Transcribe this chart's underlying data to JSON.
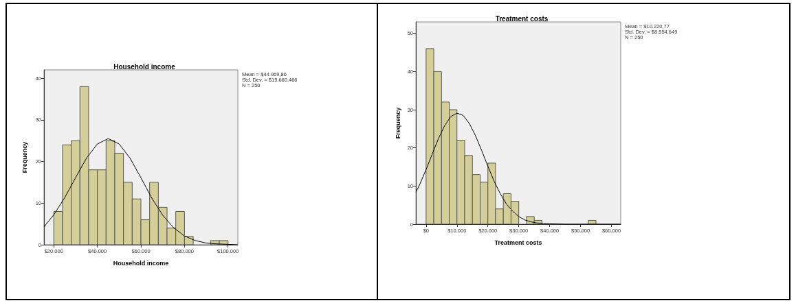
{
  "chart_data": [
    {
      "type": "histogram",
      "title": "Household income",
      "xlabel": "Household income",
      "ylabel": "Frequency",
      "bins": [
        20000,
        24000,
        28000,
        32000,
        36000,
        40000,
        44000,
        48000,
        52000,
        56000,
        60000,
        64000,
        68000,
        72000,
        76000,
        80000,
        84000,
        88000,
        92000,
        96000,
        100000
      ],
      "series": [
        {
          "color": "#d4cf99",
          "values": [
            8,
            24,
            25,
            38,
            18,
            18,
            25,
            22,
            15,
            11,
            6,
            15,
            9,
            4,
            8,
            2,
            0,
            0,
            1,
            1
          ]
        },
        {
          "type": "line",
          "color": "#000000",
          "x": [
            15500,
            20000,
            25000,
            30000,
            35000,
            40000,
            45000,
            50000,
            55000,
            60000,
            65000,
            70000,
            75000,
            80000,
            85000,
            90000,
            95000,
            100000,
            104500
          ],
          "values": [
            4.3,
            7.2,
            11.3,
            16.1,
            20.8,
            24.2,
            25.5,
            24.2,
            20.8,
            16.1,
            11.2,
            7.1,
            4.1,
            2.1,
            1.0,
            0.4,
            0.2,
            0.1,
            0.0
          ]
        }
      ],
      "xlim": [
        15500,
        104500
      ],
      "ylim": [
        0,
        42
      ],
      "xticks": [
        {
          "value": 20000,
          "label": "$20.000"
        },
        {
          "value": 40000,
          "label": "$40.000"
        },
        {
          "value": 60000,
          "label": "$60.000"
        },
        {
          "value": 80000,
          "label": "$80.000"
        },
        {
          "value": 100000,
          "label": "$100.000"
        }
      ],
      "yticks": [
        0,
        10,
        20,
        30,
        40
      ],
      "grid": false,
      "marker": "none",
      "annotations": [
        "Mean = $44.969,86",
        "Std. Dev. = $15.660,466",
        "N = 250"
      ]
    },
    {
      "type": "histogram",
      "title": "Treatment costs",
      "xlabel": "Treatment costs",
      "ylabel": "Frequency",
      "bins": [
        0,
        2500,
        5000,
        7500,
        10000,
        12500,
        15000,
        17500,
        20000,
        22500,
        25000,
        27500,
        30000,
        32500,
        35000,
        37500,
        40000,
        42500,
        45000,
        47500,
        50000,
        52500,
        55000
      ],
      "series": [
        {
          "color": "#d4cf99",
          "values": [
            46,
            40,
            32,
            30,
            22,
            18,
            13,
            11,
            16,
            4,
            8,
            6,
            0,
            2,
            1,
            0,
            0,
            0,
            0,
            0,
            0,
            1
          ]
        },
        {
          "type": "line",
          "color": "#000000",
          "x": [
            -3300,
            -2000,
            0,
            2000,
            4000,
            6000,
            8000,
            10000,
            12000,
            14000,
            16000,
            18000,
            20000,
            22000,
            24000,
            26000,
            28000,
            30000,
            32000,
            34000,
            36000,
            38000,
            40000,
            45000,
            50000,
            63000
          ],
          "values": [
            8.4,
            10.5,
            14.3,
            18.4,
            22.4,
            25.8,
            28.2,
            29.1,
            28.5,
            26.4,
            23.2,
            19.3,
            15.2,
            11.3,
            8.0,
            5.3,
            3.4,
            2.0,
            1.1,
            0.6,
            0.3,
            0.2,
            0.1,
            0.0,
            0.0,
            0.0
          ]
        }
      ],
      "xlim": [
        -3300,
        63000
      ],
      "ylim": [
        0,
        53
      ],
      "xticks": [
        {
          "value": 0,
          "label": "$0"
        },
        {
          "value": 10000,
          "label": "$10.000"
        },
        {
          "value": 20000,
          "label": "$20.000"
        },
        {
          "value": 30000,
          "label": "$30.000"
        },
        {
          "value": 40000,
          "label": "$40.000"
        },
        {
          "value": 50000,
          "label": "$50.000"
        },
        {
          "value": 60000,
          "label": "$60.000"
        }
      ],
      "yticks": [
        0,
        10,
        20,
        30,
        40,
        50
      ],
      "grid": false,
      "marker": "none",
      "annotations": [
        "Mean = $10.220,77",
        "Std. Dev. = $8.554,649",
        "N = 250"
      ]
    }
  ]
}
